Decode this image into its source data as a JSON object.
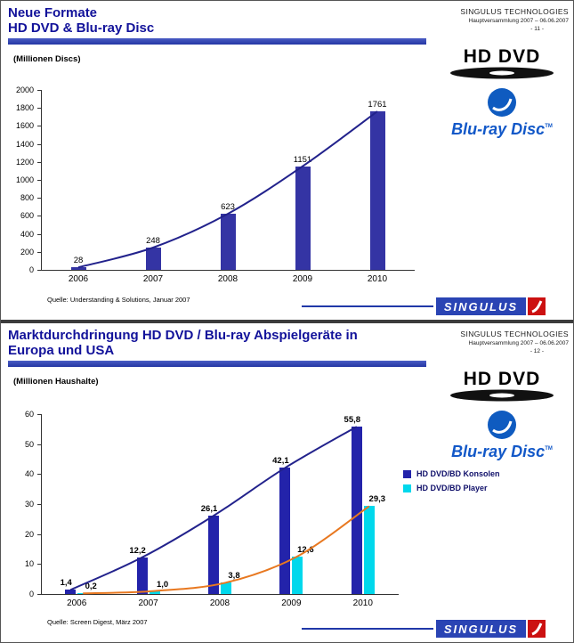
{
  "slides": [
    {
      "title_lines": [
        "Neue Formate",
        "HD DVD & Blu-ray Disc"
      ],
      "corner": {
        "company": "SINGULUS TECHNOLOGIES",
        "event": "Hauptversammlung 2007 – 06.06.2007",
        "page_no": "- 11 -"
      },
      "units_label": "(Millionen Discs)",
      "source": "Quelle: Understanding & Solutions, Januar 2007",
      "logos": {
        "hddvd": "HD DVD",
        "bluray": "Blu-ray Disc",
        "bluray_tm": "TM"
      },
      "footer_brand": "SINGULUS"
    },
    {
      "title_lines": [
        "Marktdurchdringung HD DVD / Blu-ray Abspielgeräte in",
        "Europa und USA"
      ],
      "corner": {
        "company": "SINGULUS TECHNOLOGIES",
        "event": "Hauptversammlung 2007 – 06.06.2007",
        "page_no": "- 12 -"
      },
      "units_label": "(Millionen Haushalte)",
      "source": "Quelle: Screen Digest, März 2007",
      "logos": {
        "hddvd": "HD DVD",
        "bluray": "Blu-ray Disc",
        "bluray_tm": "TM"
      },
      "footer_brand": "SINGULUS"
    }
  ],
  "chart_data": [
    {
      "type": "bar",
      "title": "Neue Formate – HD DVD & Blu-ray Disc",
      "categories": [
        "2006",
        "2007",
        "2008",
        "2009",
        "2010"
      ],
      "series": [
        {
          "name": "Millionen Discs",
          "values": [
            28,
            248,
            623,
            1151,
            1761
          ],
          "labels": [
            "28",
            "248",
            "623",
            "1151",
            "1761"
          ],
          "bar_color": "#3434a4",
          "curve_color": "#22228c"
        }
      ],
      "xlabel": "",
      "ylabel": "(Millionen Discs)",
      "ylim": [
        0,
        2000
      ],
      "ytick_step": 200,
      "grid": false,
      "legend_position": "none"
    },
    {
      "type": "bar",
      "title": "Marktdurchdringung HD DVD / Blu-ray Abspielgeräte in Europa und USA",
      "categories": [
        "2006",
        "2007",
        "2008",
        "2009",
        "2010"
      ],
      "series": [
        {
          "name": "HD DVD/BD Konsolen",
          "values": [
            1.4,
            12.2,
            26.1,
            42.1,
            55.8
          ],
          "labels": [
            "1,4",
            "12,2",
            "26,1",
            "42,1",
            "55,8"
          ],
          "bar_color": "#2323aa",
          "curve_color": "#22228c"
        },
        {
          "name": "HD DVD/BD Player",
          "values": [
            0.2,
            1.0,
            3.8,
            12.6,
            29.3
          ],
          "labels": [
            "0,2",
            "1,0",
            "3,8",
            "12,6",
            "29,3"
          ],
          "bar_color": "#00d8ec",
          "curve_color": "#e87820"
        }
      ],
      "xlabel": "",
      "ylabel": "(Millionen Haushalte)",
      "ylim": [
        0,
        60
      ],
      "ytick_step": 10,
      "grid": false,
      "legend_position": "right"
    }
  ],
  "colors": {
    "title_text": "#12129a",
    "title_bar": "#3143ae",
    "singulus_blue": "#2a44b4",
    "singulus_red": "#cc1111",
    "bluray_blue": "#1258c8",
    "konsolen_bar": "#2323aa",
    "player_bar": "#00d8ec",
    "player_curve": "#e87820"
  }
}
